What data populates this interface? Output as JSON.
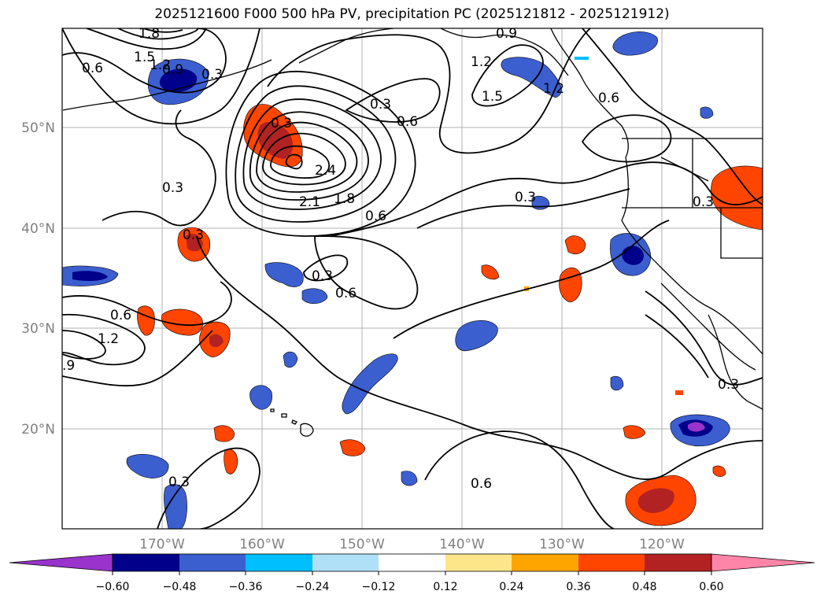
{
  "title": "2025121600 F000 500 hPa PV, precipitation PC (2025121812 - 2025121912)",
  "lat_labels": [
    "50°N",
    "40°N",
    "30°N",
    "20°N"
  ],
  "lon_labels": [
    "170°W",
    "160°W",
    "150°W",
    "140°W",
    "130°W",
    "120°W"
  ],
  "contour_labels": [
    "1.8",
    "1.5",
    "1.2",
    "0.9",
    "0.6",
    "0.3",
    "2.4",
    "2.1",
    "1.8",
    "0.6",
    "0.3",
    "1.2",
    "1.5",
    "0.6",
    "0.3",
    "0.3",
    "0.3",
    "0.6",
    "0.3",
    "0.6",
    "1.2",
    ".9",
    "0.3",
    "0.3",
    "0.6",
    "1.2",
    "0.6",
    "0.3",
    "0.9",
    "0.3"
  ],
  "colorbar": {
    "ticks": [
      "−0.60",
      "−0.48",
      "−0.36",
      "−0.24",
      "−0.12",
      "0.12",
      "0.24",
      "0.36",
      "0.48",
      "0.60"
    ],
    "colors": [
      "#9933cc",
      "#00008b",
      "#3c5fd0",
      "#00bfff",
      "#b0e0f8",
      "#ffffff",
      "#fde68a",
      "#ffa500",
      "#ff4500",
      "#b22222",
      "#ff85a8"
    ]
  }
}
